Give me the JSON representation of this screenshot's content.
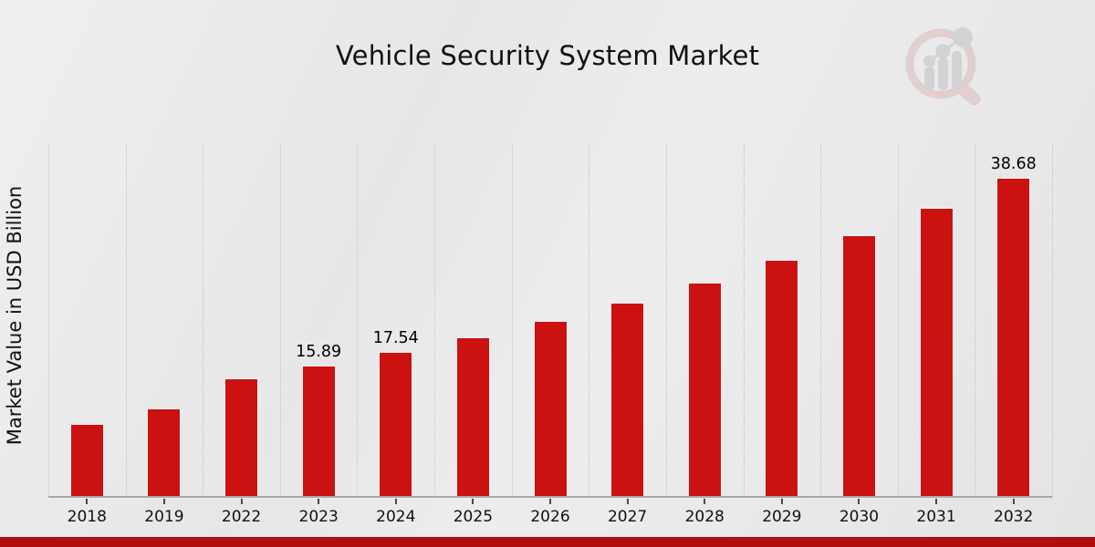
{
  "title": "Vehicle Security System Market",
  "ylabel": "Market Value in USD Billion",
  "colors": {
    "bar": "#cc1111",
    "bar_edge": "#f3f3f3",
    "bottom_strip": "#b00d0e",
    "grid": "#c3c3c4",
    "axis": "#a8a8a9",
    "title_text": "#111111"
  },
  "chart_data": {
    "type": "bar",
    "title": "Vehicle Security System Market",
    "xlabel": "",
    "ylabel": "Market Value in USD Billion",
    "categories": [
      "2018",
      "2019",
      "2022",
      "2023",
      "2024",
      "2025",
      "2026",
      "2027",
      "2028",
      "2029",
      "2030",
      "2031",
      "2032"
    ],
    "values": [
      8.9,
      10.7,
      14.4,
      15.89,
      17.54,
      19.36,
      21.37,
      23.59,
      26.04,
      28.75,
      31.74,
      35.03,
      38.68
    ],
    "bar_labels": [
      "",
      "",
      "",
      "15.89",
      "17.54",
      "",
      "",
      "",
      "",
      "",
      "",
      "",
      "38.68"
    ],
    "ylim": [
      0,
      42.7
    ],
    "grid": "vertical-dotted",
    "legend": "none",
    "bar_color": "#cc1111"
  },
  "logo": {
    "name": "market-research-future-watermark",
    "shape": "magnifier-over-bar-chart"
  }
}
